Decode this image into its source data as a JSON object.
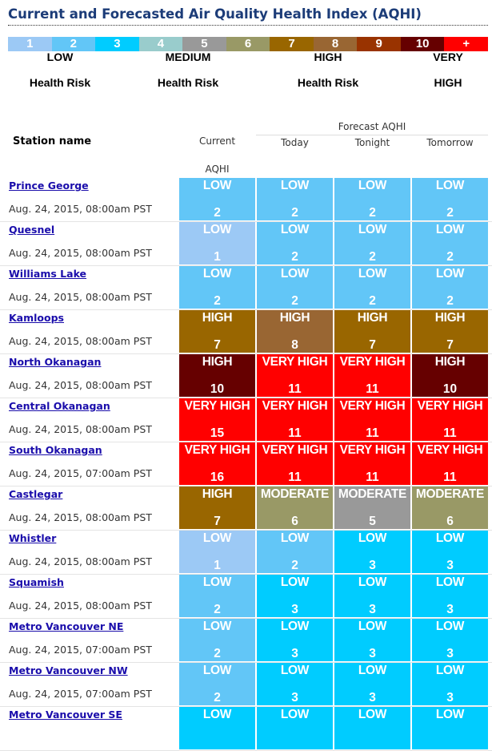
{
  "title": "Current and Forecasted Air Quality Health Index (AQHI)",
  "legend": {
    "scale": [
      {
        "label": "1",
        "color": "#9cc9f5"
      },
      {
        "label": "2",
        "color": "#62c6f7"
      },
      {
        "label": "3",
        "color": "#00ccff"
      },
      {
        "label": "4",
        "color": "#99cccc"
      },
      {
        "label": "5",
        "color": "#999999"
      },
      {
        "label": "6",
        "color": "#999966"
      },
      {
        "label": "7",
        "color": "#996600"
      },
      {
        "label": "8",
        "color": "#996633"
      },
      {
        "label": "9",
        "color": "#993300"
      },
      {
        "label": "10",
        "color": "#660000"
      },
      {
        "label": "+",
        "color": "#ff0000"
      }
    ],
    "risk": [
      {
        "top": "LOW",
        "bottom": "Health Risk"
      },
      {
        "top": "MEDIUM",
        "bottom": "Health Risk"
      },
      {
        "top": "HIGH",
        "bottom": "Health Risk"
      },
      {
        "top": "VERY",
        "bottom": "HIGH"
      }
    ]
  },
  "table": {
    "headers": {
      "station": "Station name",
      "current": "Current",
      "current_sub": "AQHI",
      "forecast": "Forecast AQHI",
      "today": "Today",
      "tonight": "Tonight",
      "tomorrow": "Tomorrow"
    },
    "rows": [
      {
        "station": "Prince George",
        "time": "Aug. 24, 2015, 08:00am PST",
        "values": [
          [
            "LOW",
            "2"
          ],
          [
            "LOW",
            "2"
          ],
          [
            "LOW",
            "2"
          ],
          [
            "LOW",
            "2"
          ]
        ]
      },
      {
        "station": "Quesnel",
        "time": "Aug. 24, 2015, 08:00am PST",
        "values": [
          [
            "LOW",
            "1"
          ],
          [
            "LOW",
            "2"
          ],
          [
            "LOW",
            "2"
          ],
          [
            "LOW",
            "2"
          ]
        ]
      },
      {
        "station": "Williams Lake",
        "time": "Aug. 24, 2015, 08:00am PST",
        "values": [
          [
            "LOW",
            "2"
          ],
          [
            "LOW",
            "2"
          ],
          [
            "LOW",
            "2"
          ],
          [
            "LOW",
            "2"
          ]
        ]
      },
      {
        "station": "Kamloops",
        "time": "Aug. 24, 2015, 08:00am PST",
        "values": [
          [
            "HIGH",
            "7"
          ],
          [
            "HIGH",
            "8"
          ],
          [
            "HIGH",
            "7"
          ],
          [
            "HIGH",
            "7"
          ]
        ]
      },
      {
        "station": "North Okanagan",
        "time": "Aug. 24, 2015, 08:00am PST",
        "values": [
          [
            "HIGH",
            "10"
          ],
          [
            "VERY HIGH",
            "11"
          ],
          [
            "VERY HIGH",
            "11"
          ],
          [
            "HIGH",
            "10"
          ]
        ]
      },
      {
        "station": "Central Okanagan",
        "time": "Aug. 24, 2015, 08:00am PST",
        "values": [
          [
            "VERY HIGH",
            "15"
          ],
          [
            "VERY HIGH",
            "11"
          ],
          [
            "VERY HIGH",
            "11"
          ],
          [
            "VERY HIGH",
            "11"
          ]
        ]
      },
      {
        "station": "South Okanagan",
        "time": "Aug. 24, 2015, 07:00am PST",
        "values": [
          [
            "VERY HIGH",
            "16"
          ],
          [
            "VERY HIGH",
            "11"
          ],
          [
            "VERY HIGH",
            "11"
          ],
          [
            "VERY HIGH",
            "11"
          ]
        ]
      },
      {
        "station": "Castlegar",
        "time": "Aug. 24, 2015, 08:00am PST",
        "values": [
          [
            "HIGH",
            "7"
          ],
          [
            "MODERATE",
            "6"
          ],
          [
            "MODERATE",
            "5"
          ],
          [
            "MODERATE",
            "6"
          ]
        ]
      },
      {
        "station": "Whistler",
        "time": "Aug. 24, 2015, 08:00am PST",
        "values": [
          [
            "LOW",
            "1"
          ],
          [
            "LOW",
            "2"
          ],
          [
            "LOW",
            "3"
          ],
          [
            "LOW",
            "3"
          ]
        ]
      },
      {
        "station": "Squamish",
        "time": "Aug. 24, 2015, 08:00am PST",
        "values": [
          [
            "LOW",
            "2"
          ],
          [
            "LOW",
            "3"
          ],
          [
            "LOW",
            "3"
          ],
          [
            "LOW",
            "3"
          ]
        ]
      },
      {
        "station": "Metro Vancouver NE",
        "time": "Aug. 24, 2015, 07:00am PST",
        "values": [
          [
            "LOW",
            "2"
          ],
          [
            "LOW",
            "3"
          ],
          [
            "LOW",
            "3"
          ],
          [
            "LOW",
            "3"
          ]
        ]
      },
      {
        "station": "Metro Vancouver NW",
        "time": "Aug. 24, 2015, 07:00am PST",
        "values": [
          [
            "LOW",
            "2"
          ],
          [
            "LOW",
            "3"
          ],
          [
            "LOW",
            "3"
          ],
          [
            "LOW",
            "3"
          ]
        ]
      },
      {
        "station": "Metro Vancouver SE",
        "time": "",
        "values": [
          [
            "LOW",
            ""
          ],
          [
            "LOW",
            ""
          ],
          [
            "LOW",
            ""
          ],
          [
            "LOW",
            ""
          ]
        ]
      }
    ]
  }
}
